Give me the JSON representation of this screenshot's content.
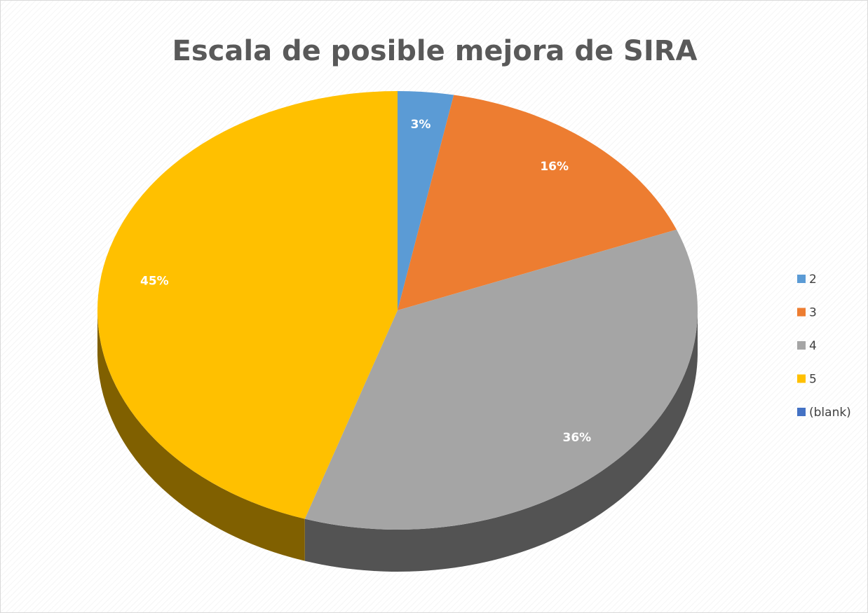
{
  "chart_data": {
    "type": "pie",
    "title": "Escala de posible mejora de SIRA",
    "categories": [
      "2",
      "3",
      "4",
      "5",
      "(blank)"
    ],
    "values": [
      3,
      16,
      36,
      45,
      0
    ],
    "value_labels": [
      "3%",
      "16%",
      "36%",
      "45%",
      null
    ],
    "colors": [
      "#5b9bd5",
      "#ed7d31",
      "#a5a5a5",
      "#ffc000",
      "#4472c4"
    ],
    "legend": "right"
  }
}
